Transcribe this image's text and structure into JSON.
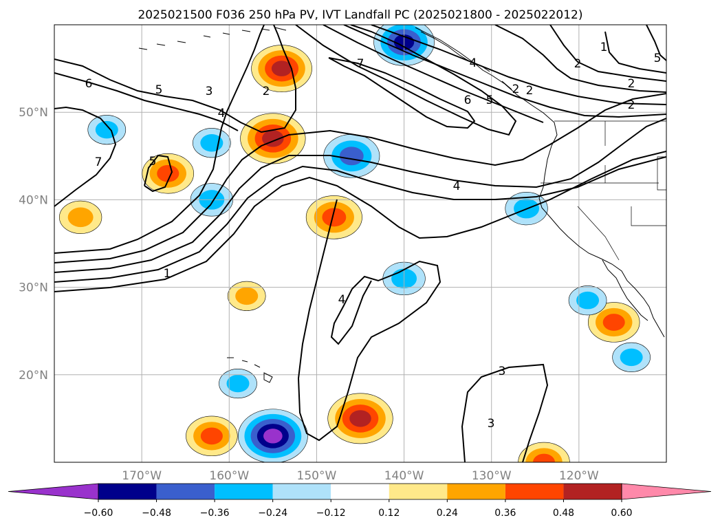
{
  "chart_data": {
    "type": "contour-map",
    "title": "2025021500 F036 250 hPa PV, IVT Landfall PC (2025021800 - 2025022012)",
    "lon_range": [
      -180,
      -110
    ],
    "lat_range": [
      10,
      60
    ],
    "xticks": [
      {
        "lon": -170,
        "label": "170°W"
      },
      {
        "lon": -160,
        "label": "160°W"
      },
      {
        "lon": -150,
        "label": "150°W"
      },
      {
        "lon": -140,
        "label": "140°W"
      },
      {
        "lon": -130,
        "label": "130°W"
      },
      {
        "lon": -120,
        "label": "120°W"
      }
    ],
    "yticks": [
      {
        "lat": 20,
        "label": "20°N"
      },
      {
        "lat": 30,
        "label": "30°N"
      },
      {
        "lat": 40,
        "label": "40°N"
      },
      {
        "lat": 50,
        "label": "50°N"
      }
    ],
    "grid": true,
    "colorbar": {
      "orientation": "horizontal",
      "extend": "both",
      "levels": [
        -0.6,
        -0.48,
        -0.36,
        -0.24,
        -0.12,
        0.12,
        0.24,
        0.36,
        0.48,
        0.6
      ],
      "tick_labels": [
        "−0.60",
        "−0.48",
        "−0.36",
        "−0.24",
        "−0.12",
        "0.12",
        "0.24",
        "0.36",
        "0.48",
        "0.60"
      ],
      "colors": [
        "#9932cc",
        "#00008b",
        "#3a5fcd",
        "#00bfff",
        "#afe2fa",
        "#ffffff",
        "#ffe98a",
        "#ffa500",
        "#ff4500",
        "#b22222",
        "#ff89aa"
      ]
    },
    "pv_contour_labels": [
      "6",
      "5",
      "3",
      "4",
      "2",
      "1",
      "7",
      "5",
      "7",
      "6",
      "5",
      "4",
      "4",
      "2",
      "2",
      "1",
      "2",
      "2",
      "3",
      "3",
      "4",
      "2",
      "5"
    ],
    "filled_anomalies": [
      {
        "lon": -154,
        "lat": 55,
        "value": 0.5
      },
      {
        "lon": -155,
        "lat": 47,
        "value": 0.55
      },
      {
        "lon": -148,
        "lat": 38,
        "value": 0.45
      },
      {
        "lon": -145,
        "lat": 15,
        "value": 0.55
      },
      {
        "lon": -177,
        "lat": 38,
        "value": 0.3
      },
      {
        "lon": -167,
        "lat": 43,
        "value": 0.4
      },
      {
        "lon": -162,
        "lat": 13,
        "value": 0.4
      },
      {
        "lon": -158,
        "lat": 29,
        "value": 0.25
      },
      {
        "lon": -116,
        "lat": 26,
        "value": 0.4
      },
      {
        "lon": -124,
        "lat": 10,
        "value": 0.4
      },
      {
        "lon": -155,
        "lat": 13,
        "value": -0.6
      },
      {
        "lon": -146,
        "lat": 45,
        "value": -0.45
      },
      {
        "lon": -162,
        "lat": 40,
        "value": -0.3
      },
      {
        "lon": -140,
        "lat": 58,
        "value": -0.5
      },
      {
        "lon": -126,
        "lat": 39,
        "value": -0.3
      },
      {
        "lon": -140,
        "lat": 31,
        "value": -0.3
      },
      {
        "lon": -119,
        "lat": 28.5,
        "value": -0.25
      },
      {
        "lon": -114,
        "lat": 22,
        "value": -0.25
      },
      {
        "lon": -162,
        "lat": 46.5,
        "value": -0.25
      },
      {
        "lon": -174,
        "lat": 48,
        "value": -0.25
      },
      {
        "lon": -159,
        "lat": 19,
        "value": -0.25
      }
    ]
  }
}
